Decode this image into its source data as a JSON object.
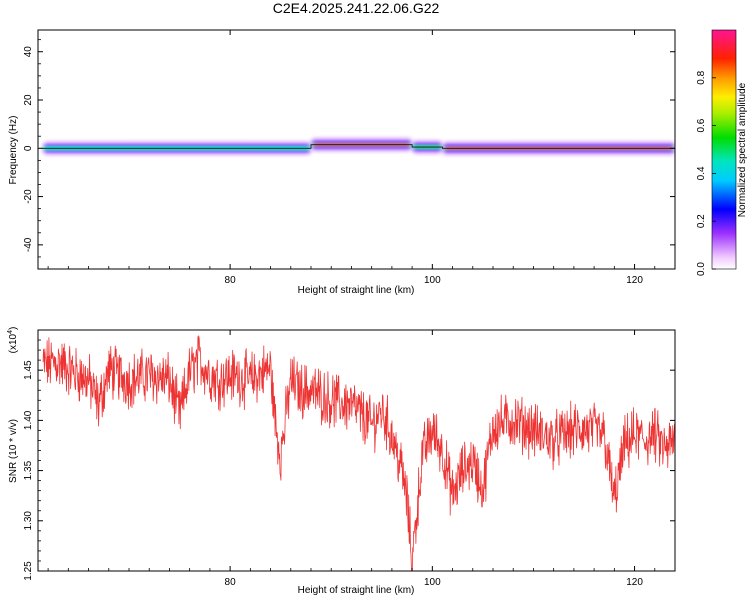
{
  "title": "C2E4.2025.241.22.06.G22",
  "chart_data": [
    {
      "type": "heatmap",
      "name": "spectrogram",
      "xlabel": "Height of straight line (km)",
      "ylabel": "Frequency (Hz)",
      "xlim": [
        61,
        124
      ],
      "ylim": [
        -50,
        49
      ],
      "xticks": [
        80,
        100,
        120
      ],
      "yticks": [
        40,
        20,
        0,
        -20,
        -40
      ],
      "ytick_labels": [
        "40",
        "20",
        "0",
        "-20",
        "-40"
      ],
      "xtick_labels": [
        "80",
        "100",
        "120"
      ],
      "colorbar": {
        "label": "Normalized spectral amplitude",
        "range": [
          0,
          1
        ],
        "ticks": [
          0.0,
          0.2,
          0.4,
          0.6,
          0.8
        ],
        "tick_labels": [
          "0.0",
          "0.2",
          "0.4",
          "0.6",
          "0.8"
        ]
      },
      "ridge": {
        "description_free": true,
        "segments": [
          {
            "x0": 61.5,
            "x1": 88,
            "center_freq": 0,
            "peak": 0.5
          },
          {
            "x0": 88,
            "x1": 98,
            "center_freq": 1.5,
            "peak": 0.9
          },
          {
            "x0": 98,
            "x1": 101,
            "center_freq": 0.5,
            "peak": 0.6
          },
          {
            "x0": 101,
            "x1": 124,
            "center_freq": 0,
            "peak": 0.9
          }
        ]
      }
    },
    {
      "type": "line",
      "name": "snr",
      "xlabel": "Height of straight line (km)",
      "ylabel": "SNR (10 * v/v)",
      "yscale_label": "(x10",
      "yscale_exp": "4",
      "xlim": [
        61,
        124
      ],
      "ylim": [
        1.25,
        1.49
      ],
      "xticks": [
        80,
        100,
        120
      ],
      "xtick_labels": [
        "80",
        "100",
        "120"
      ],
      "yticks": [
        1.25,
        1.3,
        1.35,
        1.4,
        1.45
      ],
      "ytick_labels": [
        "1.25",
        "1.30",
        "1.35",
        "1.40",
        "1.45"
      ],
      "color": "#ee3333",
      "series": [
        {
          "name": "SNR",
          "x": [
            61.5,
            63,
            65,
            66,
            67,
            68,
            70,
            72,
            74,
            75,
            76,
            77,
            78,
            79,
            80,
            82,
            83,
            84,
            84.5,
            85,
            86,
            87,
            88,
            89,
            90,
            92,
            94,
            95,
            96,
            97,
            97.5,
            98,
            99,
            100,
            101,
            102,
            103,
            104,
            105,
            106,
            108,
            110,
            112,
            114,
            116,
            117,
            118,
            119,
            120,
            121,
            122,
            123,
            124
          ],
          "y": [
            1.455,
            1.458,
            1.445,
            1.44,
            1.415,
            1.45,
            1.44,
            1.445,
            1.44,
            1.405,
            1.448,
            1.46,
            1.445,
            1.44,
            1.445,
            1.44,
            1.447,
            1.452,
            1.395,
            1.365,
            1.44,
            1.43,
            1.43,
            1.425,
            1.42,
            1.415,
            1.395,
            1.41,
            1.385,
            1.35,
            1.32,
            1.26,
            1.365,
            1.39,
            1.37,
            1.325,
            1.35,
            1.36,
            1.33,
            1.395,
            1.4,
            1.39,
            1.38,
            1.39,
            1.39,
            1.385,
            1.32,
            1.375,
            1.385,
            1.38,
            1.385,
            1.37,
            1.38
          ]
        }
      ]
    }
  ]
}
